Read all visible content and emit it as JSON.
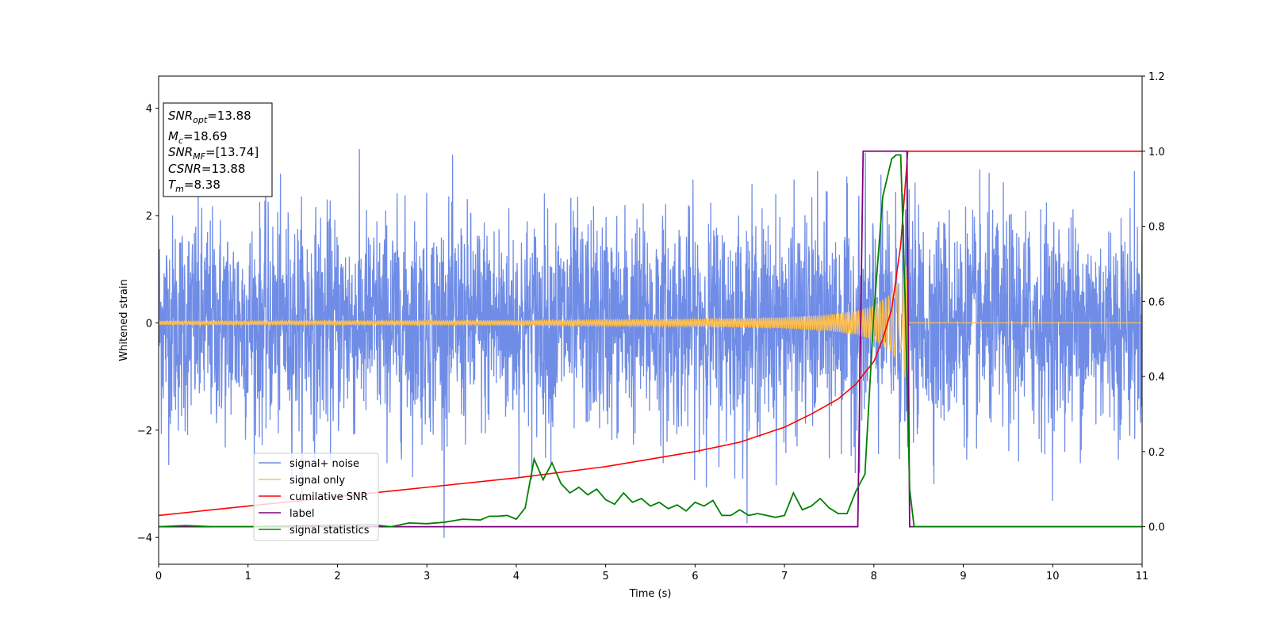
{
  "chart_data": {
    "type": "line",
    "xlabel": "Time (s)",
    "ylabel": "Whitened strain",
    "xlim": [
      0,
      11
    ],
    "ylim": [
      -4.5,
      4.6
    ],
    "y2lim": [
      -0.1,
      1.2
    ],
    "xticks": [
      "0",
      "1",
      "2",
      "3",
      "4",
      "5",
      "6",
      "7",
      "8",
      "9",
      "10",
      "11"
    ],
    "yticks": [
      "−4",
      "−2",
      "0",
      "2",
      "4"
    ],
    "y2ticks": [
      "0.0",
      "0.2",
      "0.4",
      "0.6",
      "0.8",
      "1.0",
      "1.2"
    ],
    "legend_position": "lower-left",
    "info_box": {
      "snr_opt": "=13.88",
      "mc": "=18.69",
      "snr_mf": "=[13.74]",
      "csnr": "=13.88",
      "tm": "=8.38"
    },
    "series": [
      {
        "name": "signal+ noise",
        "color": "#6f8ce6",
        "axis": "left",
        "noise_sigma": 1.0,
        "range": [
          -4.05,
          4.15
        ]
      },
      {
        "name": "signal only",
        "color": "#ffbf4d",
        "axis": "left",
        "chirp_envelope": {
          "x": [
            0,
            4,
            6,
            7,
            7.5,
            7.8,
            8.0,
            8.2,
            8.3,
            8.38
          ],
          "amp": [
            0.03,
            0.04,
            0.07,
            0.1,
            0.15,
            0.22,
            0.32,
            0.55,
            0.85,
            1.15
          ]
        }
      },
      {
        "name": "cumilative SNR",
        "color": "#ff0000",
        "axis": "right",
        "x": [
          0,
          1,
          2,
          3,
          4,
          5,
          6,
          6.5,
          7,
          7.3,
          7.6,
          7.8,
          8.0,
          8.1,
          8.2,
          8.3,
          8.38,
          8.39,
          11
        ],
        "y": [
          0.03,
          0.055,
          0.08,
          0.105,
          0.13,
          0.16,
          0.2,
          0.225,
          0.265,
          0.3,
          0.34,
          0.38,
          0.44,
          0.5,
          0.58,
          0.75,
          1.0,
          1.0,
          1.0
        ]
      },
      {
        "name": "label",
        "color": "#800080",
        "axis": "right",
        "x": [
          0,
          7.82,
          7.88,
          8.37,
          8.4,
          11
        ],
        "y": [
          0,
          0,
          1.0,
          1.0,
          0,
          0
        ]
      },
      {
        "name": "signal statistics",
        "color": "#008000",
        "axis": "right",
        "x": [
          0,
          0.3,
          0.6,
          1.0,
          1.4,
          1.8,
          2.1,
          2.4,
          2.6,
          2.8,
          3.0,
          3.2,
          3.4,
          3.6,
          3.7,
          3.8,
          3.9,
          4.0,
          4.1,
          4.2,
          4.3,
          4.4,
          4.5,
          4.6,
          4.7,
          4.8,
          4.9,
          5.0,
          5.1,
          5.2,
          5.3,
          5.4,
          5.5,
          5.6,
          5.7,
          5.8,
          5.9,
          6.0,
          6.1,
          6.2,
          6.3,
          6.4,
          6.5,
          6.6,
          6.7,
          6.8,
          6.9,
          7.0,
          7.1,
          7.2,
          7.3,
          7.4,
          7.5,
          7.6,
          7.7,
          7.8,
          7.9,
          8.0,
          8.1,
          8.2,
          8.25,
          8.3,
          8.35,
          8.4,
          8.45,
          8.6,
          9,
          10,
          11
        ],
        "y": [
          0.0,
          0.003,
          0.0,
          0.0,
          0.002,
          0.004,
          0.005,
          0.005,
          0.0,
          0.01,
          0.008,
          0.012,
          0.02,
          0.018,
          0.028,
          0.028,
          0.03,
          0.02,
          0.05,
          0.18,
          0.125,
          0.17,
          0.115,
          0.09,
          0.105,
          0.085,
          0.1,
          0.072,
          0.06,
          0.09,
          0.065,
          0.075,
          0.055,
          0.065,
          0.048,
          0.058,
          0.042,
          0.065,
          0.055,
          0.07,
          0.03,
          0.03,
          0.045,
          0.03,
          0.035,
          0.03,
          0.025,
          0.03,
          0.09,
          0.045,
          0.055,
          0.075,
          0.05,
          0.035,
          0.035,
          0.095,
          0.14,
          0.57,
          0.88,
          0.98,
          0.99,
          0.99,
          0.6,
          0.1,
          0.0,
          0.0,
          0.0,
          0.0,
          0.0
        ]
      }
    ]
  }
}
